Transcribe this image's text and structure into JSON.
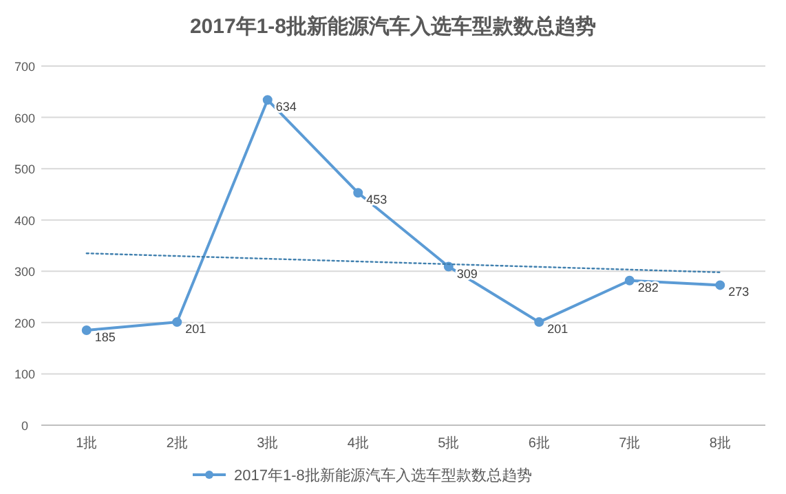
{
  "chart_data": {
    "type": "line",
    "title": "2017年1-8批新能源汽车入选车型款数总趋势",
    "categories": [
      "1批",
      "2批",
      "3批",
      "4批",
      "5批",
      "6批",
      "7批",
      "8批"
    ],
    "series": [
      {
        "name": "2017年1-8批新能源汽车入选车型款数总趋势",
        "color": "#5b9bd5",
        "values": [
          185,
          201,
          634,
          453,
          309,
          201,
          282,
          273
        ],
        "value_labels": [
          "185",
          "201",
          "634",
          "453",
          "309",
          "201",
          "282",
          "273"
        ],
        "marker": "circle",
        "line_style": "solid"
      },
      {
        "type": "line",
        "color": "#3f7fae",
        "x": [
          "1批",
          "8批"
        ],
        "values": [
          335,
          298
        ],
        "marker": "none",
        "line_style": "dotted"
      }
    ],
    "ylim": [
      0,
      700
    ],
    "yticks": [
      0,
      100,
      200,
      300,
      400,
      500,
      600,
      700
    ],
    "grid": "y",
    "legend": "bottom"
  }
}
